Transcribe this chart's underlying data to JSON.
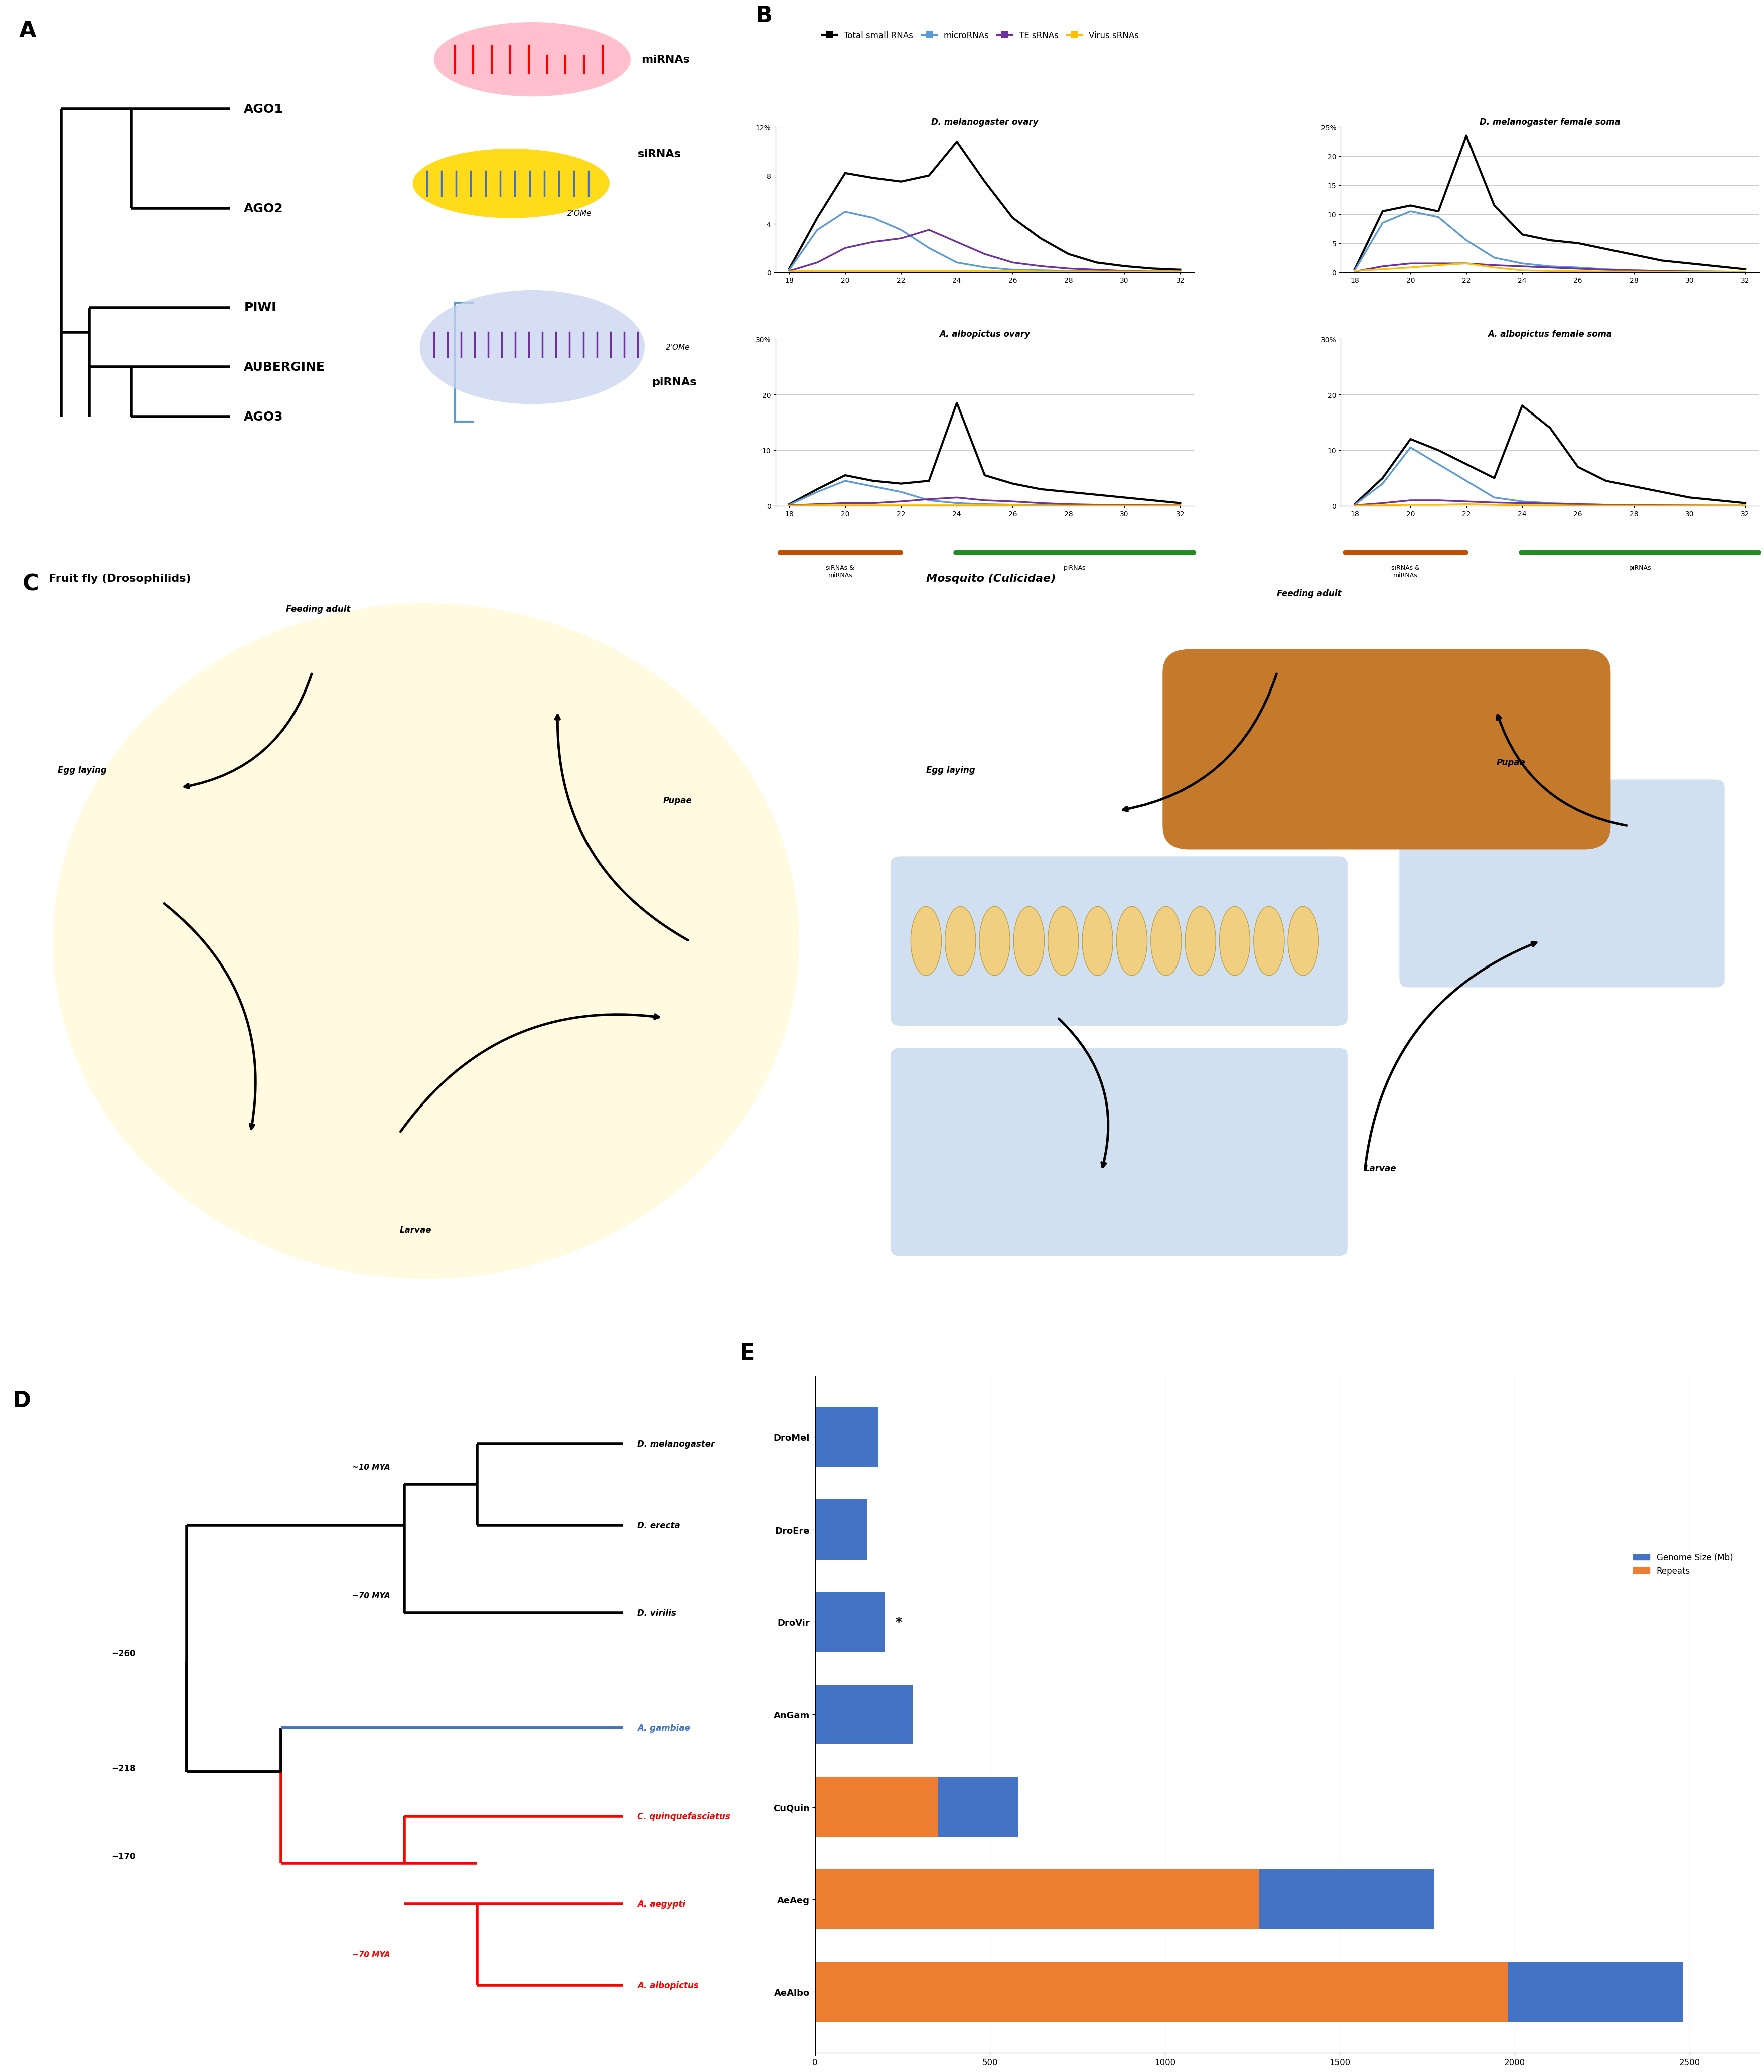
{
  "panel_labels": [
    "A",
    "B",
    "C",
    "D",
    "E"
  ],
  "legend_entries": [
    "Total small RNAs",
    "microRNAs",
    "TE sRNAs",
    "Virus sRNAs"
  ],
  "legend_colors": [
    "#000000",
    "#5B9BD5",
    "#7030A0",
    "#FFC000"
  ],
  "subplot_titles": [
    "D. melanogaster ovary",
    "D. melanogaster female soma",
    "A. albopictus ovary",
    "A. albopictus female soma"
  ],
  "dmel_ovary_x": [
    18,
    19,
    20,
    21,
    22,
    23,
    24,
    25,
    26,
    27,
    28,
    29,
    30,
    31,
    32
  ],
  "dmel_ovary_total": [
    0.3,
    4.5,
    8.2,
    7.8,
    7.5,
    8.0,
    10.8,
    7.5,
    4.5,
    2.8,
    1.5,
    0.8,
    0.5,
    0.3,
    0.2
  ],
  "dmel_ovary_mirna": [
    0.2,
    3.5,
    5.0,
    4.5,
    3.5,
    2.0,
    0.8,
    0.4,
    0.2,
    0.15,
    0.1,
    0.1,
    0.05,
    0.05,
    0.05
  ],
  "dmel_ovary_te": [
    0.1,
    0.8,
    2.0,
    2.5,
    2.8,
    3.5,
    2.5,
    1.5,
    0.8,
    0.5,
    0.3,
    0.2,
    0.1,
    0.05,
    0.05
  ],
  "dmel_ovary_virus": [
    0.05,
    0.1,
    0.1,
    0.1,
    0.1,
    0.1,
    0.1,
    0.1,
    0.1,
    0.05,
    0.05,
    0.05,
    0.05,
    0.05,
    0.05
  ],
  "dmel_soma_x": [
    18,
    19,
    20,
    21,
    22,
    23,
    24,
    25,
    26,
    27,
    28,
    29,
    30,
    31,
    32
  ],
  "dmel_soma_total": [
    0.5,
    10.5,
    11.5,
    10.5,
    23.5,
    11.5,
    6.5,
    5.5,
    5.0,
    4.0,
    3.0,
    2.0,
    1.5,
    1.0,
    0.5
  ],
  "dmel_soma_mirna": [
    0.3,
    8.5,
    10.5,
    9.5,
    5.5,
    2.5,
    1.5,
    1.0,
    0.8,
    0.5,
    0.3,
    0.2,
    0.15,
    0.1,
    0.05
  ],
  "dmel_soma_te": [
    0.1,
    1.0,
    1.5,
    1.5,
    1.5,
    1.2,
    1.0,
    0.8,
    0.6,
    0.4,
    0.3,
    0.2,
    0.1,
    0.08,
    0.05
  ],
  "dmel_soma_virus": [
    0.2,
    0.5,
    0.8,
    1.2,
    1.5,
    0.8,
    0.3,
    0.2,
    0.15,
    0.1,
    0.1,
    0.05,
    0.05,
    0.05,
    0.05
  ],
  "aalbo_ovary_x": [
    18,
    19,
    20,
    21,
    22,
    23,
    24,
    25,
    26,
    27,
    28,
    29,
    30,
    31,
    32
  ],
  "aalbo_ovary_total": [
    0.3,
    3.0,
    5.5,
    4.5,
    4.0,
    4.5,
    18.5,
    5.5,
    4.0,
    3.0,
    2.5,
    2.0,
    1.5,
    1.0,
    0.5
  ],
  "aalbo_ovary_mirna": [
    0.2,
    2.5,
    4.5,
    3.5,
    2.5,
    1.0,
    0.5,
    0.3,
    0.2,
    0.15,
    0.1,
    0.1,
    0.05,
    0.05,
    0.05
  ],
  "aalbo_ovary_te": [
    0.1,
    0.3,
    0.5,
    0.5,
    0.8,
    1.2,
    1.5,
    1.0,
    0.8,
    0.5,
    0.3,
    0.2,
    0.15,
    0.1,
    0.08
  ],
  "aalbo_ovary_virus": [
    0.05,
    0.1,
    0.1,
    0.1,
    0.1,
    0.1,
    0.1,
    0.1,
    0.1,
    0.05,
    0.05,
    0.05,
    0.05,
    0.05,
    0.05
  ],
  "aalbo_soma_x": [
    18,
    19,
    20,
    21,
    22,
    23,
    24,
    25,
    26,
    27,
    28,
    29,
    30,
    31,
    32
  ],
  "aalbo_soma_total": [
    0.3,
    5.0,
    12.0,
    10.0,
    7.5,
    5.0,
    18.0,
    14.0,
    7.0,
    4.5,
    3.5,
    2.5,
    1.5,
    1.0,
    0.5
  ],
  "aalbo_soma_mirna": [
    0.2,
    4.0,
    10.5,
    7.5,
    4.5,
    1.5,
    0.8,
    0.5,
    0.3,
    0.2,
    0.15,
    0.1,
    0.05,
    0.05,
    0.05
  ],
  "aalbo_soma_te": [
    0.1,
    0.5,
    1.0,
    1.0,
    0.8,
    0.6,
    0.5,
    0.4,
    0.3,
    0.2,
    0.15,
    0.1,
    0.08,
    0.05,
    0.05
  ],
  "aalbo_soma_virus": [
    0.05,
    0.1,
    0.2,
    0.2,
    0.3,
    0.2,
    0.1,
    0.1,
    0.05,
    0.05,
    0.05,
    0.05,
    0.05,
    0.05,
    0.05
  ],
  "x_ticks": [
    18,
    20,
    22,
    24,
    26,
    28,
    30,
    32
  ],
  "bar_species": [
    "DroMel",
    "DroEre",
    "DroVir",
    "AnGam",
    "CuQuin",
    "AeAeg",
    "AeAlbo"
  ],
  "bar_genome_only": [
    180,
    150,
    200,
    280,
    230,
    500,
    500
  ],
  "bar_repeats": [
    0,
    0,
    0,
    0,
    350,
    1270,
    1980
  ],
  "bar_color_genome": "#4472C4",
  "bar_color_repeats": "#ED7D31",
  "siRNA_miRNA_color": "#C05000",
  "piRNA_color": "#228B22"
}
